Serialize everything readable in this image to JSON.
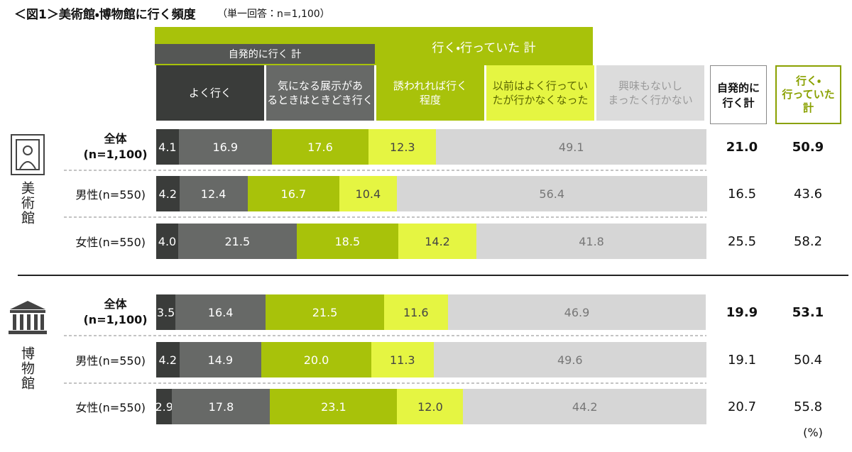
{
  "chart_data": {
    "type": "bar",
    "orientation": "horizontal",
    "stacked": true,
    "title": "＜図1＞美術館・博物館に行く頻度",
    "subtitle": "（単一回答：n=1,100）",
    "unit": "(%)",
    "groups": [
      "美術館",
      "博物館"
    ],
    "header_groups": [
      "自発的に行く 計",
      "行く・行っていた 計"
    ],
    "categories": [
      "全体\n(n=1,100)",
      "男性(n=550)",
      "女性(n=550)",
      "全体\n(n=1,100)",
      "男性(n=550)",
      "女性(n=550)"
    ],
    "xlim": [
      0,
      100
    ],
    "series": [
      {
        "name": "よく行く",
        "color": "#3a3c3a",
        "values": [
          4.1,
          4.2,
          4.0,
          3.5,
          4.2,
          2.9
        ],
        "value_labels": [
          "4.1",
          "4.2",
          "4.0",
          "3.5",
          "4.2",
          "2.9"
        ]
      },
      {
        "name": "気になる展示があ\nるときはときどき行く",
        "color": "#676967",
        "values": [
          16.9,
          12.4,
          21.5,
          16.4,
          14.9,
          17.8
        ],
        "value_labels": [
          "16.9",
          "12.4",
          "21.5",
          "16.4",
          "14.9",
          "17.8"
        ]
      },
      {
        "name": "誘われれば行く\n程度",
        "color": "#a8c20a",
        "values": [
          17.6,
          16.7,
          18.5,
          21.5,
          20.0,
          23.1
        ],
        "value_labels": [
          "17.6",
          "16.7",
          "18.5",
          "21.5",
          "20.0",
          "23.1"
        ]
      },
      {
        "name": "以前はよく行ってい\nたが行かなくなった",
        "color": "#e5f542",
        "values": [
          12.3,
          10.4,
          14.2,
          11.6,
          11.3,
          12.0
        ],
        "value_labels": [
          "12.3",
          "10.4",
          "14.2",
          "11.6",
          "11.3",
          "12.0"
        ]
      },
      {
        "name": "興味もないし\nまったく行かない",
        "color": "#d6d6d6",
        "values": [
          49.1,
          56.4,
          41.8,
          46.9,
          49.6,
          44.2
        ],
        "value_labels": [
          "49.1",
          "56.4",
          "41.8",
          "46.9",
          "49.6",
          "44.2"
        ]
      }
    ],
    "totals": [
      {
        "name": "自発的に\n行く計",
        "color": "#111111",
        "values": [
          21.0,
          16.5,
          25.5,
          19.9,
          19.1,
          20.7
        ],
        "value_labels": [
          "21.0",
          "16.5",
          "25.5",
          "19.9",
          "19.1",
          "20.7"
        ]
      },
      {
        "name": "行く・\n行っていた\n計",
        "color": "#8aa100",
        "values": [
          50.9,
          43.6,
          58.2,
          53.1,
          50.4,
          55.8
        ],
        "value_labels": [
          "50.9",
          "43.6",
          "58.2",
          "53.1",
          "50.4",
          "55.8"
        ]
      }
    ]
  }
}
